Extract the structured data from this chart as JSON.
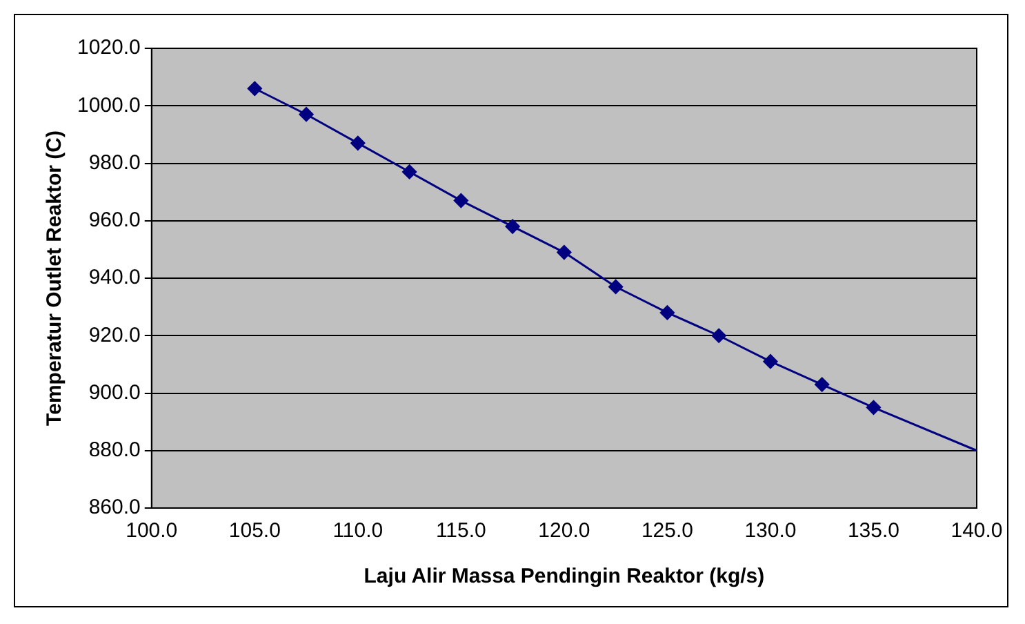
{
  "chart_data": {
    "type": "line",
    "xlabel": "Laju Alir Massa Pendingin Reaktor (kg/s)",
    "ylabel": "Temperatur Outlet Reaktor (C)",
    "series": [
      {
        "color": "#000080",
        "marker": "diamond",
        "x": [
          105,
          107.5,
          110,
          112.5,
          115,
          117.5,
          120,
          122.5,
          125,
          127.5,
          130,
          132.5,
          135
        ],
        "values": [
          1006,
          997,
          987,
          977,
          967,
          958,
          949,
          937,
          928,
          920,
          911,
          903,
          895
        ]
      },
      {
        "color": "#000080",
        "marker": "none",
        "x": [
          135,
          140
        ],
        "values": [
          895,
          880
        ]
      }
    ],
    "xlim": [
      100,
      140
    ],
    "ylim": [
      860,
      1020
    ],
    "xticks": [
      {
        "value": 100,
        "label": "100.0"
      },
      {
        "value": 105,
        "label": "105.0"
      },
      {
        "value": 110,
        "label": "110.0"
      },
      {
        "value": 115,
        "label": "115.0"
      },
      {
        "value": 120,
        "label": "120.0"
      },
      {
        "value": 125,
        "label": "125.0"
      },
      {
        "value": 130,
        "label": "130.0"
      },
      {
        "value": 135,
        "label": "135.0"
      },
      {
        "value": 140,
        "label": "140.0"
      }
    ],
    "yticks": [
      {
        "value": 860,
        "label": "860.0"
      },
      {
        "value": 880,
        "label": "880.0"
      },
      {
        "value": 900,
        "label": "900.0"
      },
      {
        "value": 920,
        "label": "920.0"
      },
      {
        "value": 940,
        "label": "940.0"
      },
      {
        "value": 960,
        "label": "960.0"
      },
      {
        "value": 980,
        "label": "980.0"
      },
      {
        "value": 1000,
        "label": "1000.0"
      },
      {
        "value": 1020,
        "label": "1020.0"
      }
    ],
    "grid": "y",
    "legend": false,
    "line_style": "solid"
  }
}
